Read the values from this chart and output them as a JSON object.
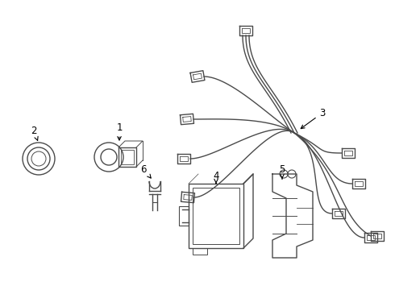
{
  "background_color": "#ffffff",
  "line_color": "#4a4a4a",
  "label_color": "#000000",
  "figsize": [
    4.9,
    3.6
  ],
  "dpi": 100
}
